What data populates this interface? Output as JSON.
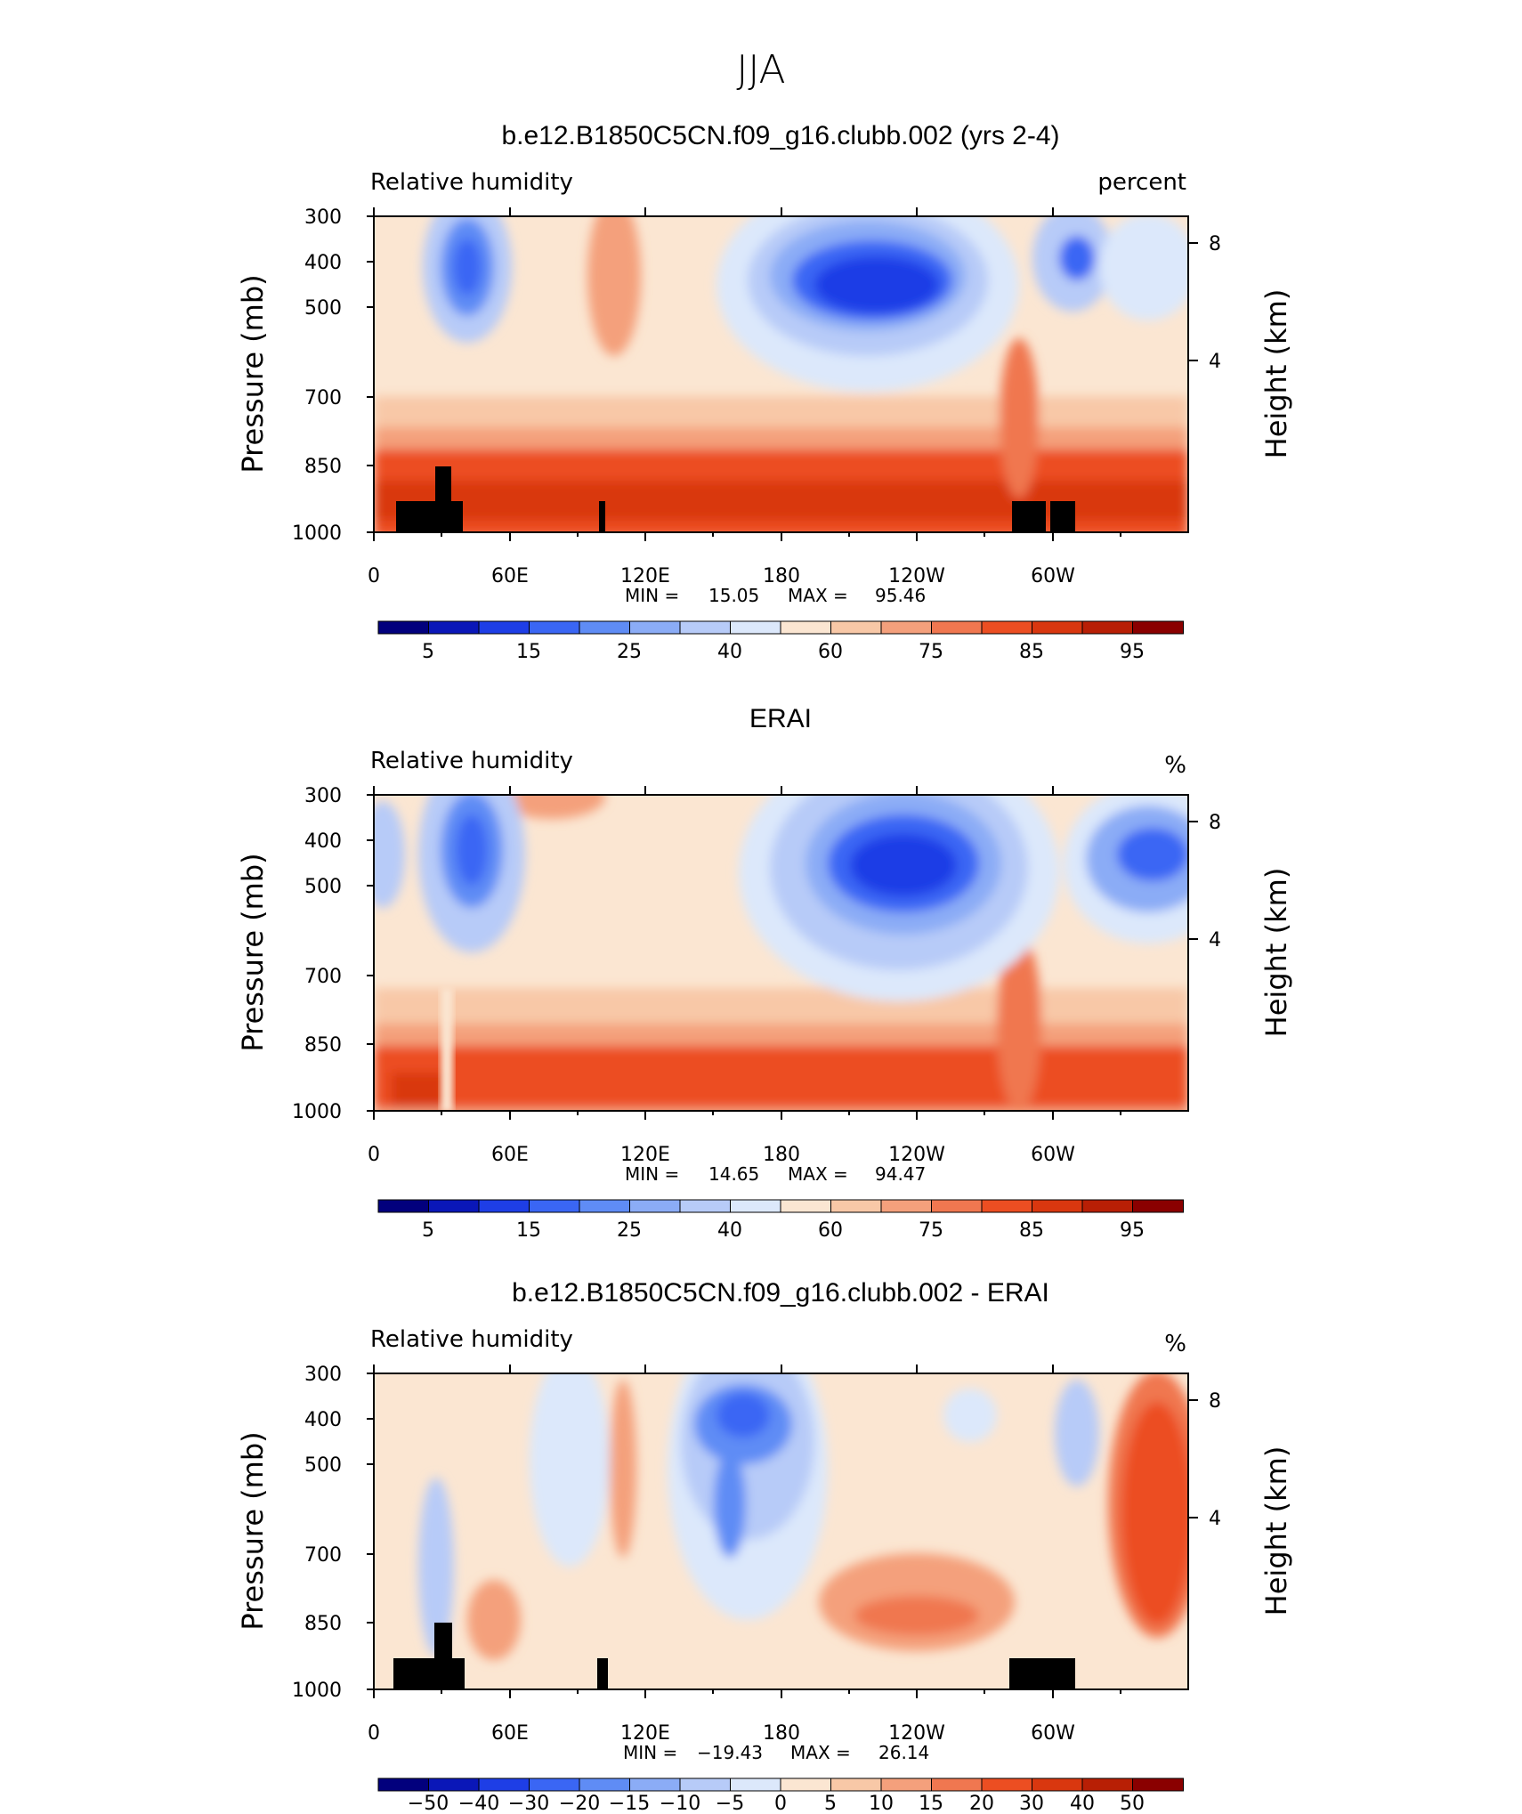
{
  "page_title": "JJA",
  "colors": {
    "rh_levels": [
      "#02007d",
      "#0a17b8",
      "#1e3ee6",
      "#3a66f4",
      "#5f8cf5",
      "#8bacf6",
      "#b7cbf8",
      "#dce8fb",
      "#fbe6d2",
      "#f8c8a7",
      "#f4a07c",
      "#f07750",
      "#ec4e22",
      "#d9370f",
      "#b81f05",
      "#8a0000"
    ],
    "terrain": "#000000"
  },
  "chart_data": [
    {
      "type": "heatmap",
      "title": "b.e12.B1850C5CN.f09_g16.clubb.002 (yrs 2-4)",
      "left_label": "Relative humidity",
      "right_label": "percent",
      "ylabel": "Pressure (mb)",
      "ylabel_right": "Height (km)",
      "x_ticks": [
        "0",
        "60E",
        "120E",
        "180",
        "120W",
        "60W"
      ],
      "y_ticks": [
        "300",
        "400",
        "500",
        "700",
        "850",
        "1000"
      ],
      "y2_ticks": [
        "8",
        "4"
      ],
      "stats": {
        "min_label": "MIN =",
        "min": "15.05",
        "max_label": "MAX =",
        "max": "95.46"
      },
      "colorbar_labels": [
        "5",
        "15",
        "25",
        "40",
        "60",
        "75",
        "85",
        "95"
      ],
      "field_min": 15.05,
      "field_max": 95.46
    },
    {
      "type": "heatmap",
      "title": "ERAI",
      "left_label": "Relative humidity",
      "right_label": "%",
      "ylabel": "Pressure (mb)",
      "ylabel_right": "Height (km)",
      "x_ticks": [
        "0",
        "60E",
        "120E",
        "180",
        "120W",
        "60W"
      ],
      "y_ticks": [
        "300",
        "400",
        "500",
        "700",
        "850",
        "1000"
      ],
      "y2_ticks": [
        "8",
        "4"
      ],
      "stats": {
        "min_label": "MIN =",
        "min": "14.65",
        "max_label": "MAX =",
        "max": "94.47"
      },
      "colorbar_labels": [
        "5",
        "15",
        "25",
        "40",
        "60",
        "75",
        "85",
        "95"
      ],
      "field_min": 14.65,
      "field_max": 94.47
    },
    {
      "type": "heatmap",
      "title": "b.e12.B1850C5CN.f09_g16.clubb.002 - ERAI",
      "left_label": "Relative humidity",
      "right_label": "%",
      "ylabel": "Pressure (mb)",
      "ylabel_right": "Height (km)",
      "x_ticks": [
        "0",
        "60E",
        "120E",
        "180",
        "120W",
        "60W"
      ],
      "y_ticks": [
        "300",
        "400",
        "500",
        "700",
        "850",
        "1000"
      ],
      "y2_ticks": [
        "8",
        "4"
      ],
      "stats": {
        "min_label": "MIN =",
        "min": "−19.43",
        "max_label": "MAX =",
        "max": "26.14"
      },
      "colorbar_labels": [
        "−50",
        "−40",
        "−30",
        "−20",
        "−15",
        "−10",
        "−5",
        "0",
        "5",
        "10",
        "15",
        "20",
        "30",
        "40",
        "50"
      ],
      "field_min": -19.43,
      "field_max": 26.14
    }
  ]
}
